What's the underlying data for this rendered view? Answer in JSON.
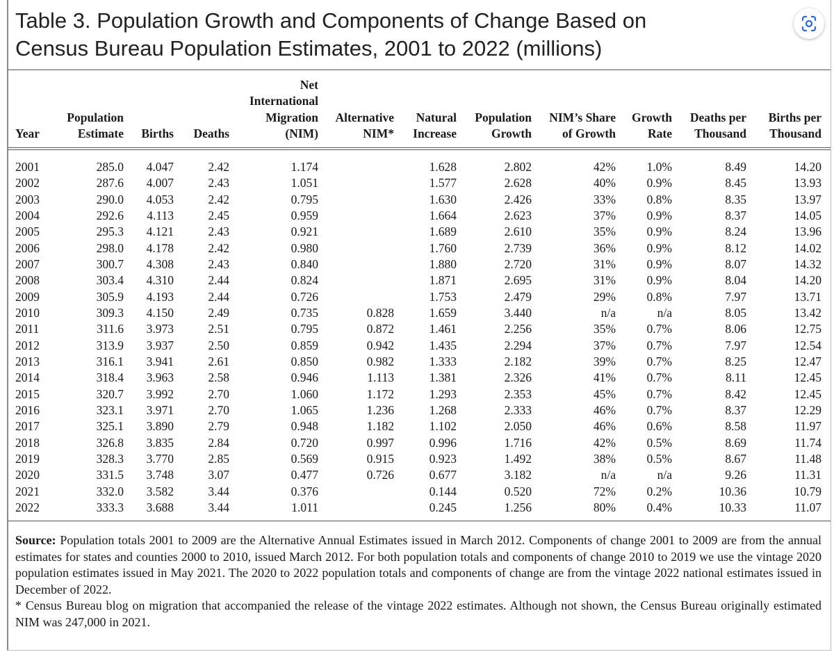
{
  "header": {
    "title_lines": [
      "Table 3. Population Growth and Components of Change Based on",
      "Census Bureau Population Estimates, 2001 to 2022 (millions)"
    ]
  },
  "table": {
    "columns": [
      [
        "Year"
      ],
      [
        "Population",
        "Estimate"
      ],
      [
        "Births"
      ],
      [
        "Deaths"
      ],
      [
        "Net",
        "International",
        "Migration",
        "(NIM)"
      ],
      [
        "Alternative",
        "NIM*"
      ],
      [
        "Natural",
        "Increase"
      ],
      [
        "Population",
        "Growth"
      ],
      [
        "NIM’s Share",
        "of Growth"
      ],
      [
        "Growth",
        "Rate"
      ],
      [
        "Deaths per",
        "Thousand"
      ],
      [
        "Births per",
        "Thousand"
      ]
    ],
    "rows": [
      [
        "2001",
        "285.0",
        "4.047",
        "2.42",
        "1.174",
        null,
        "1.628",
        "2.802",
        "42%",
        "1.0%",
        "8.49",
        "14.20"
      ],
      [
        "2002",
        "287.6",
        "4.007",
        "2.43",
        "1.051",
        null,
        "1.577",
        "2.628",
        "40%",
        "0.9%",
        "8.45",
        "13.93"
      ],
      [
        "2003",
        "290.0",
        "4.053",
        "2.42",
        "0.795",
        null,
        "1.630",
        "2.426",
        "33%",
        "0.8%",
        "8.35",
        "13.97"
      ],
      [
        "2004",
        "292.6",
        "4.113",
        "2.45",
        "0.959",
        null,
        "1.664",
        "2.623",
        "37%",
        "0.9%",
        "8.37",
        "14.05"
      ],
      [
        "2005",
        "295.3",
        "4.121",
        "2.43",
        "0.921",
        null,
        "1.689",
        "2.610",
        "35%",
        "0.9%",
        "8.24",
        "13.96"
      ],
      [
        "2006",
        "298.0",
        "4.178",
        "2.42",
        "0.980",
        null,
        "1.760",
        "2.739",
        "36%",
        "0.9%",
        "8.12",
        "14.02"
      ],
      [
        "2007",
        "300.7",
        "4.308",
        "2.43",
        "0.840",
        null,
        "1.880",
        "2.720",
        "31%",
        "0.9%",
        "8.07",
        "14.32"
      ],
      [
        "2008",
        "303.4",
        "4.310",
        "2.44",
        "0.824",
        null,
        "1.871",
        "2.695",
        "31%",
        "0.9%",
        "8.04",
        "14.20"
      ],
      [
        "2009",
        "305.9",
        "4.193",
        "2.44",
        "0.726",
        null,
        "1.753",
        "2.479",
        "29%",
        "0.8%",
        "7.97",
        "13.71"
      ],
      [
        "2010",
        "309.3",
        "4.150",
        "2.49",
        "0.735",
        "0.828",
        "1.659",
        "3.440",
        "n/a",
        "n/a",
        "8.05",
        "13.42"
      ],
      [
        "2011",
        "311.6",
        "3.973",
        "2.51",
        "0.795",
        "0.872",
        "1.461",
        "2.256",
        "35%",
        "0.7%",
        "8.06",
        "12.75"
      ],
      [
        "2012",
        "313.9",
        "3.937",
        "2.50",
        "0.859",
        "0.942",
        "1.435",
        "2.294",
        "37%",
        "0.7%",
        "7.97",
        "12.54"
      ],
      [
        "2013",
        "316.1",
        "3.941",
        "2.61",
        "0.850",
        "0.982",
        "1.333",
        "2.182",
        "39%",
        "0.7%",
        "8.25",
        "12.47"
      ],
      [
        "2014",
        "318.4",
        "3.963",
        "2.58",
        "0.946",
        "1.113",
        "1.381",
        "2.326",
        "41%",
        "0.7%",
        "8.11",
        "12.45"
      ],
      [
        "2015",
        "320.7",
        "3.992",
        "2.70",
        "1.060",
        "1.172",
        "1.293",
        "2.353",
        "45%",
        "0.7%",
        "8.42",
        "12.45"
      ],
      [
        "2016",
        "323.1",
        "3.971",
        "2.70",
        "1.065",
        "1.236",
        "1.268",
        "2.333",
        "46%",
        "0.7%",
        "8.37",
        "12.29"
      ],
      [
        "2017",
        "325.1",
        "3.890",
        "2.79",
        "0.948",
        "1.182",
        "1.102",
        "2.050",
        "46%",
        "0.6%",
        "8.58",
        "11.97"
      ],
      [
        "2018",
        "326.8",
        "3.835",
        "2.84",
        "0.720",
        "0.997",
        "0.996",
        "1.716",
        "42%",
        "0.5%",
        "8.69",
        "11.74"
      ],
      [
        "2019",
        "328.3",
        "3.770",
        "2.85",
        "0.569",
        "0.915",
        "0.923",
        "1.492",
        "38%",
        "0.5%",
        "8.67",
        "11.48"
      ],
      [
        "2020",
        "331.5",
        "3.748",
        "3.07",
        "0.477",
        "0.726",
        "0.677",
        "3.182",
        "n/a",
        "n/a",
        "9.26",
        "11.31"
      ],
      [
        "2021",
        "332.0",
        "3.582",
        "3.44",
        "0.376",
        null,
        "0.144",
        "0.520",
        "72%",
        "0.2%",
        "10.36",
        "10.79"
      ],
      [
        "2022",
        "333.3",
        "3.688",
        "3.44",
        "1.011",
        null,
        "0.245",
        "1.256",
        "80%",
        "0.4%",
        "10.33",
        "11.07"
      ]
    ]
  },
  "notes": {
    "source_label": "Source:",
    "source_text": "Population totals 2001 to 2009 are the Alternative Annual Estimates issued in March 2012. Components of change 2001 to 2009 are from the annual estimates for states and counties 2000 to 2010, issued March 2012. For both population totals and components of change 2010 to 2019 we use the vintage 2020 population estimates issued in May 2021. The 2020 to 2022 population totals and components of change are from the vintage 2022 national estimates issued in December of 2022.",
    "footnote": "* Census Bureau blog on migration that accompanied the release of the vintage 2022 estimates. Although not shown, the Census Bureau originally estimated NIM was 247,000 in 2021."
  }
}
